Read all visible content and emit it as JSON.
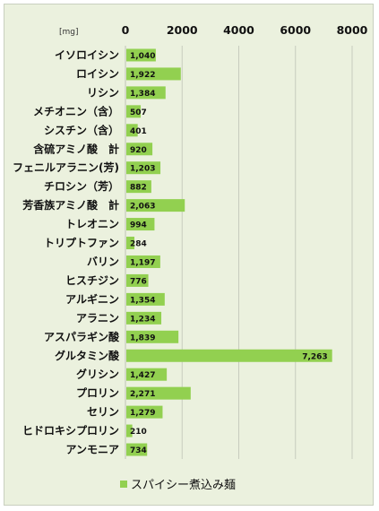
{
  "chart_data": {
    "type": "bar",
    "orientation": "horizontal",
    "unit": "[mg]",
    "categories": [
      "イソロイシン",
      "ロイシン",
      "リシン",
      "メチオニン（含）",
      "シスチン（含）",
      "含硫アミノ酸　計",
      "フェニルアラニン(芳)",
      "チロシン（芳）",
      "芳香族アミノ酸　計",
      "トレオニン",
      "トリプトファン",
      "バリン",
      "ヒスチジン",
      "アルギニン",
      "アラニン",
      "アスパラギン酸",
      "グルタミン酸",
      "グリシン",
      "プロリン",
      "セリン",
      "ヒドロキシプロリン",
      "アンモニア"
    ],
    "series": [
      {
        "name": "スパイシー煮込み麺",
        "color": "#92d050",
        "values": [
          1040,
          1922,
          1384,
          507,
          401,
          920,
          1203,
          882,
          2063,
          994,
          284,
          1197,
          776,
          1354,
          1234,
          1839,
          7263,
          1427,
          2271,
          1279,
          210,
          734
        ],
        "labels": [
          "1,040",
          "1,922",
          "1,384",
          "507",
          "401",
          "920",
          "1,203",
          "882",
          "2,063",
          "994",
          "284",
          "1,197",
          "776",
          "1,354",
          "1,234",
          "1,839",
          "7,263",
          "1,427",
          "2,271",
          "1,279",
          "210",
          "734"
        ]
      }
    ],
    "xlim": [
      0,
      8000
    ],
    "ticks": [
      0,
      2000,
      4000,
      6000,
      8000
    ],
    "tick_labels": [
      "0",
      "2000",
      "4000",
      "6000",
      "8000"
    ],
    "grid": true,
    "legend": "bottom"
  }
}
